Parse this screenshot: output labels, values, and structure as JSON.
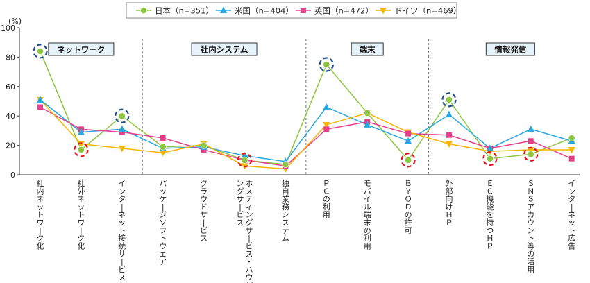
{
  "chart_data": {
    "type": "line",
    "yunit": "(%)",
    "ylim": [
      0,
      100
    ],
    "yticks": [
      0,
      20,
      40,
      60,
      80,
      100
    ],
    "grid": false,
    "legend_position": "top",
    "categories": [
      "社内ネットワーク化",
      "社外ネットワーク化",
      "インターネット接続サービス",
      "パッケージソフトウェア",
      "クラウドサービス",
      "ホスティングサービス・ハウジングサービス",
      "独自業務システム",
      "ＰＣの利用",
      "モバイル端末の利用",
      "ＢＹＯＤの許可",
      "外部向けＨＰ",
      "ＥＣ機能を持つＨＰ",
      "ＳＮＳアカウント等の活用",
      "インターネット広告"
    ],
    "groups": [
      {
        "label": "ネットワーク",
        "categories": [
          0,
          1,
          2
        ]
      },
      {
        "label": "社内システム",
        "categories": [
          3,
          4,
          5,
          6
        ]
      },
      {
        "label": "端末",
        "categories": [
          7,
          8,
          9
        ]
      },
      {
        "label": "情報発信",
        "categories": [
          10,
          11,
          12,
          13
        ]
      }
    ],
    "series": [
      {
        "name": "日本（n=351）",
        "color": "#8dc63f",
        "marker": "circle",
        "values": [
          84,
          17,
          40,
          19,
          20,
          10,
          7,
          75,
          42,
          10,
          51,
          11,
          14,
          25
        ]
      },
      {
        "name": "米国（n=404）",
        "color": "#29a8e0",
        "marker": "triangle-up",
        "values": [
          51,
          29,
          31,
          18,
          19,
          13,
          9,
          46,
          34,
          23,
          41,
          18,
          31,
          23
        ]
      },
      {
        "name": "英国（n=472）",
        "color": "#e8418c",
        "marker": "square",
        "values": [
          46,
          31,
          29,
          25,
          17,
          10,
          6,
          31,
          36,
          28,
          27,
          18,
          23,
          11
        ]
      },
      {
        "name": "ドイツ（n=469）",
        "color": "#f7b500",
        "marker": "triangle-down",
        "values": [
          51,
          21,
          18,
          15,
          21,
          6,
          4,
          34,
          42,
          29,
          21,
          16,
          17,
          17
        ]
      }
    ],
    "highlights": {
      "max": {
        "series": 0,
        "indices": [
          0,
          2,
          7,
          10
        ],
        "color": "#1f4e8c"
      },
      "min": {
        "series": 0,
        "indices": [
          1,
          5,
          9,
          11,
          12
        ],
        "color": "#e4141b"
      }
    }
  }
}
